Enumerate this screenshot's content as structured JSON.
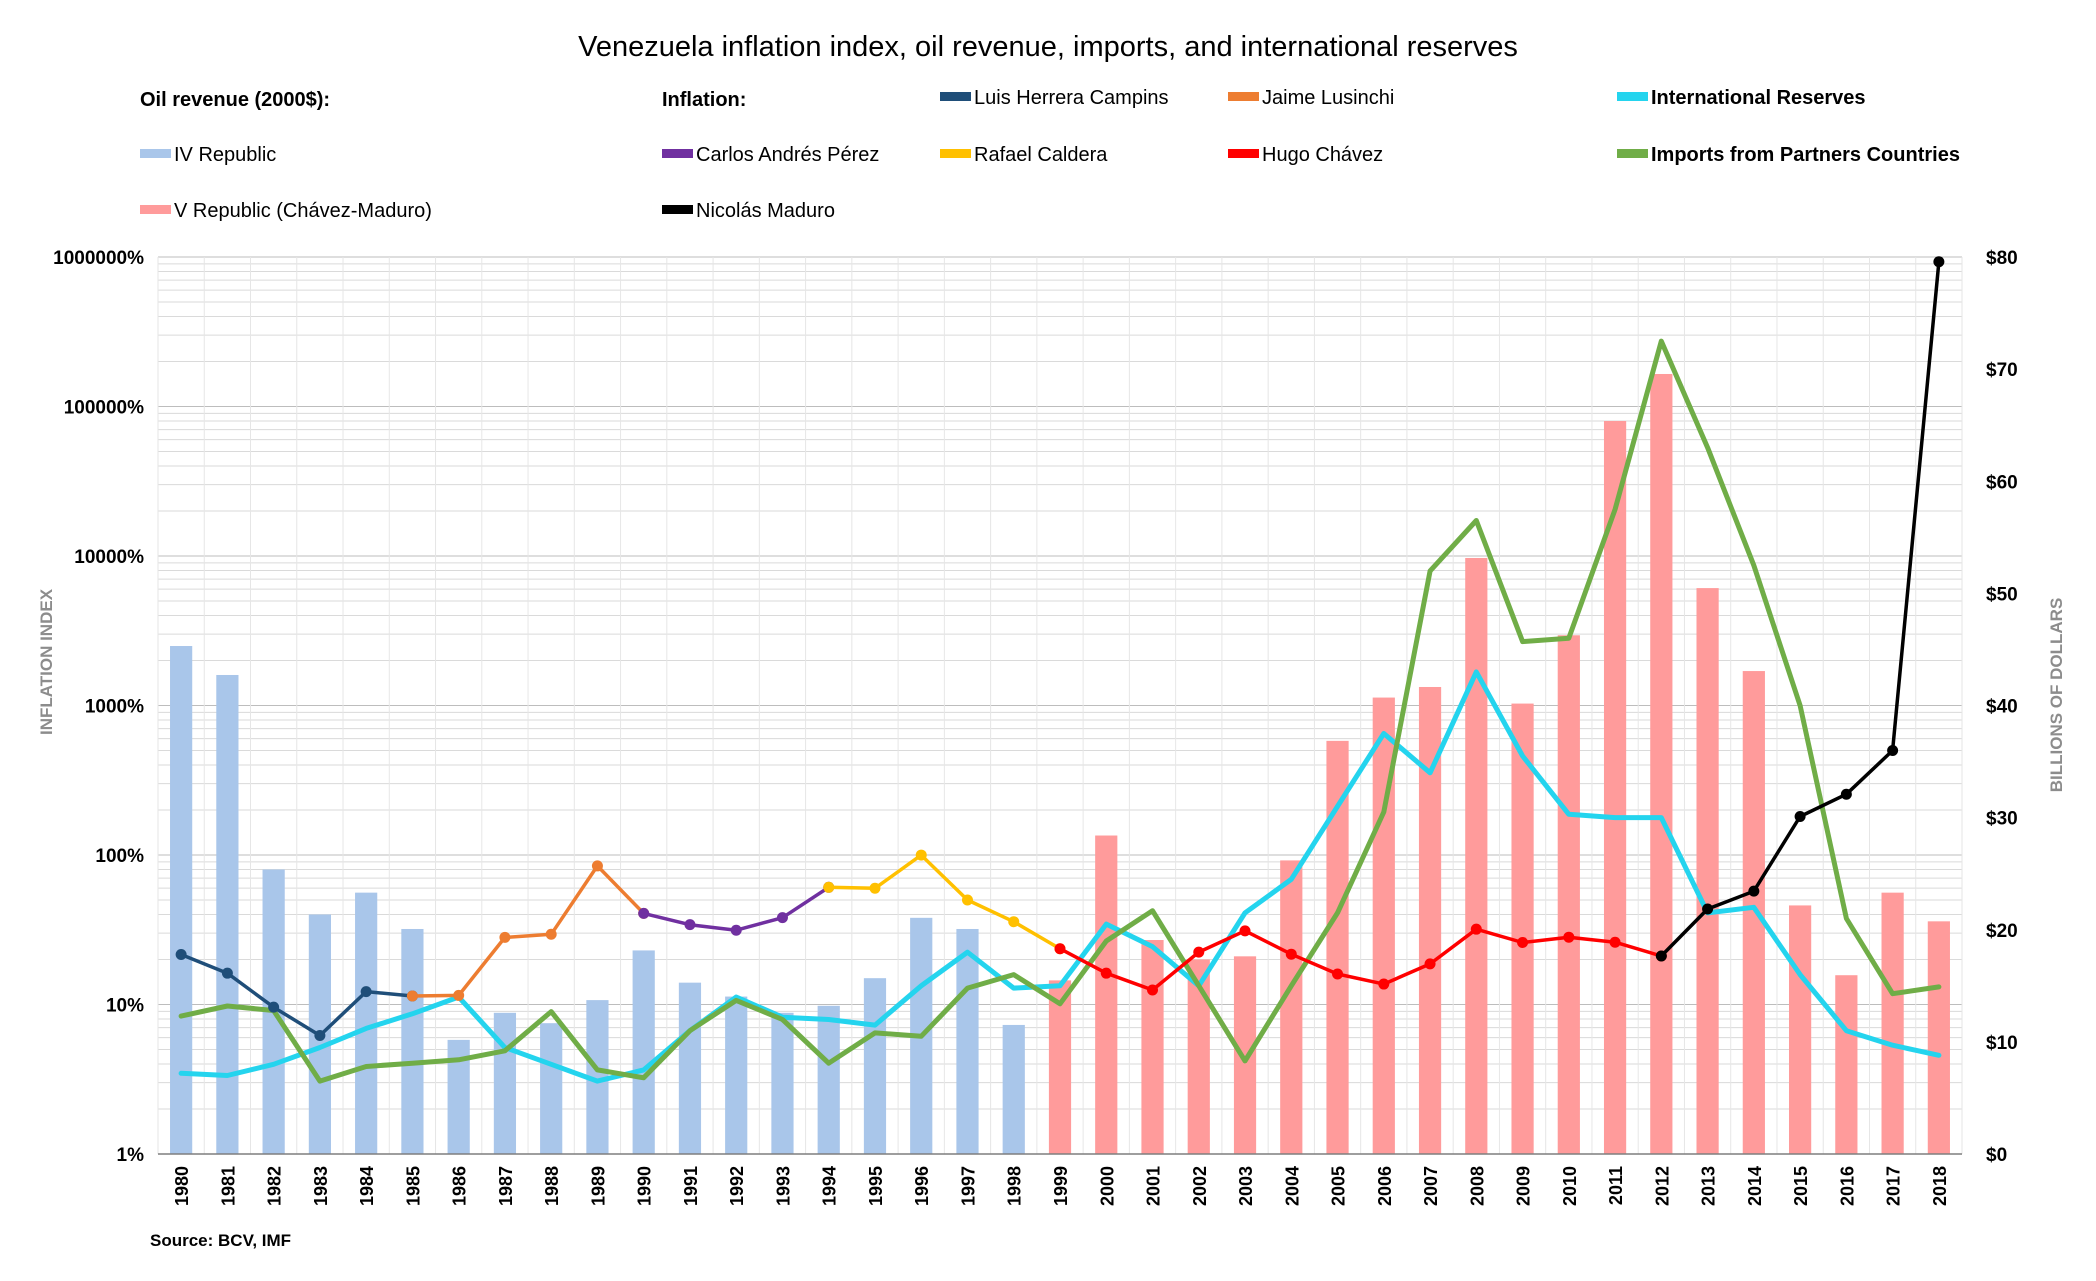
{
  "chart_data": {
    "type": "bar",
    "title": "Venezuela inflation index, oil revenue, imports, and international reserves",
    "source": "Source: BCV,  IMF",
    "ylabel_left": "INFLATION INDEX",
    "ylabel_right": "BILLIONS OF DOLLARS",
    "left_axis": {
      "scale": "log",
      "ticks": [
        {
          "value": 1,
          "label": "1%"
        },
        {
          "value": 10,
          "label": "10%"
        },
        {
          "value": 100,
          "label": "100%"
        },
        {
          "value": 1000,
          "label": "1000%"
        },
        {
          "value": 10000,
          "label": "10000%"
        },
        {
          "value": 100000,
          "label": "100000%"
        },
        {
          "value": 1000000,
          "label": "1000000%"
        }
      ]
    },
    "right_axis": {
      "scale": "linear",
      "ylim": [
        0,
        80
      ],
      "ticks": [
        {
          "value": 0,
          "label": "$0"
        },
        {
          "value": 10,
          "label": "$10"
        },
        {
          "value": 20,
          "label": "$20"
        },
        {
          "value": 30,
          "label": "$30"
        },
        {
          "value": 40,
          "label": "$40"
        },
        {
          "value": 50,
          "label": "$50"
        },
        {
          "value": 60,
          "label": "$60"
        },
        {
          "value": 70,
          "label": "$70"
        },
        {
          "value": 80,
          "label": "$80"
        }
      ]
    },
    "grid": true,
    "categories": [
      "1980",
      "1981",
      "1982",
      "1983",
      "1984",
      "1985",
      "1986",
      "1987",
      "1988",
      "1989",
      "1990",
      "1991",
      "1992",
      "1993",
      "1994",
      "1995",
      "1996",
      "1997",
      "1998",
      "1999",
      "2000",
      "2001",
      "2002",
      "2003",
      "2004",
      "2005",
      "2006",
      "2007",
      "2008",
      "2009",
      "2010",
      "2011",
      "2012",
      "2013",
      "2014",
      "2015",
      "2016",
      "2017",
      "2018"
    ],
    "legend": {
      "headers": [
        "Oil revenue (2000$):",
        "Inflation:"
      ],
      "entries": [
        {
          "label": "Luis Herrera Campins",
          "color": "#1f4e79"
        },
        {
          "label": "Jaime Lusinchi",
          "color": "#ed7d31"
        },
        {
          "label": "International Reserves",
          "color": "#24d4ee",
          "bold": true
        },
        {
          "label": "IV Republic",
          "color": "#a9c6ea"
        },
        {
          "label": "Carlos Andrés Pérez",
          "color": "#7030a0"
        },
        {
          "label": "Rafael Caldera",
          "color": "#ffc000"
        },
        {
          "label": "Hugo Chávez",
          "color": "#ff0000"
        },
        {
          "label": "Imports from Partners Countries",
          "color": "#70ad47",
          "bold": true
        },
        {
          "label": "V Republic (Chávez-Maduro)",
          "color": "#ff9b9b"
        },
        {
          "label": "Nicolás Maduro",
          "color": "#000000"
        }
      ]
    },
    "bar_series": [
      {
        "name": "IV Republic",
        "color": "#a9c6ea",
        "axis": "left",
        "values": [
          2500,
          1600,
          80,
          40,
          56,
          32,
          5.8,
          8.8,
          7.5,
          10.7,
          23,
          14,
          11.3,
          8.8,
          9.8,
          15,
          38,
          32,
          7.3,
          null,
          null,
          null,
          null,
          null,
          null,
          null,
          null,
          null,
          null,
          null,
          null,
          null,
          null,
          null,
          null,
          null,
          null,
          null,
          null
        ]
      },
      {
        "name": "V Republic (Chávez-Maduro)",
        "color": "#ff9b9b",
        "axis": "left",
        "values": [
          null,
          null,
          null,
          null,
          null,
          null,
          null,
          null,
          null,
          null,
          null,
          null,
          null,
          null,
          null,
          null,
          null,
          null,
          null,
          14.5,
          135,
          27,
          20,
          21,
          92,
          580,
          1130,
          1330,
          9700,
          1030,
          2950,
          80000,
          165000,
          6100,
          1700,
          46,
          15.7,
          56,
          36
        ]
      }
    ],
    "inflation_series": [
      {
        "name": "Luis Herrera Campins",
        "color": "#1f4e79",
        "x": [
          "1980",
          "1981",
          "1982",
          "1983",
          "1984",
          "1985"
        ],
        "values": [
          21.6,
          16.2,
          9.6,
          6.2,
          12.2,
          11.4
        ]
      },
      {
        "name": "Jaime Lusinchi",
        "color": "#ed7d31",
        "x": [
          "1985",
          "1986",
          "1987",
          "1988",
          "1989",
          "1990"
        ],
        "values": [
          11.4,
          11.5,
          28.1,
          29.5,
          84.5,
          40.7
        ]
      },
      {
        "name": "Carlos Andrés Pérez",
        "color": "#7030a0",
        "x": [
          "1990",
          "1991",
          "1992",
          "1993",
          "1994"
        ],
        "values": [
          40.7,
          34.2,
          31.4,
          38.1,
          60.8
        ]
      },
      {
        "name": "Rafael Caldera",
        "color": "#ffc000",
        "x": [
          "1994",
          "1995",
          "1996",
          "1997",
          "1998",
          "1999"
        ],
        "values": [
          60.8,
          59.9,
          99.9,
          50,
          35.8,
          23.6
        ]
      },
      {
        "name": "Hugo Chávez",
        "color": "#ff0000",
        "x": [
          "1999",
          "2000",
          "2001",
          "2002",
          "2003",
          "2004",
          "2005",
          "2006",
          "2007",
          "2008",
          "2009",
          "2010",
          "2011",
          "2012"
        ],
        "values": [
          23.6,
          16.2,
          12.5,
          22.4,
          31.1,
          21.7,
          16,
          13.7,
          18.7,
          31.9,
          26,
          28.2,
          26.1,
          21.1
        ]
      },
      {
        "name": "Nicolás Maduro",
        "color": "#000000",
        "x": [
          "2012",
          "2013",
          "2014",
          "2015",
          "2016",
          "2017",
          "2018"
        ],
        "values": [
          21.1,
          43.5,
          57.3,
          180.9,
          255,
          500,
          929790
        ]
      }
    ],
    "dollar_series": [
      {
        "name": "International Reserves",
        "color": "#24d4ee",
        "axis": "right",
        "values": [
          7.2,
          7,
          8,
          9.5,
          11.2,
          12.5,
          14,
          9.5,
          8,
          6.5,
          7.5,
          11,
          14,
          12.2,
          12,
          11.5,
          15,
          18,
          14.8,
          15,
          20.5,
          18.5,
          15,
          21.5,
          24.5,
          31,
          37.5,
          34,
          43,
          35.5,
          30.3,
          30,
          30,
          21.5,
          22,
          16,
          11,
          9.7,
          8.8
        ]
      },
      {
        "name": "Imports from Partners Countries",
        "color": "#70ad47",
        "axis": "right",
        "values": [
          12.3,
          13.2,
          12.8,
          6.5,
          7.8,
          8.1,
          8.4,
          9.2,
          12.7,
          7.5,
          6.8,
          11,
          13.7,
          12,
          8.1,
          10.8,
          10.5,
          14.8,
          16,
          13.4,
          19,
          21.7,
          15,
          8.3,
          15,
          21.5,
          30.5,
          52,
          56.5,
          45.7,
          46,
          57.5,
          72.5,
          63,
          52.5,
          40,
          21,
          14.3,
          14.9
        ]
      }
    ]
  }
}
